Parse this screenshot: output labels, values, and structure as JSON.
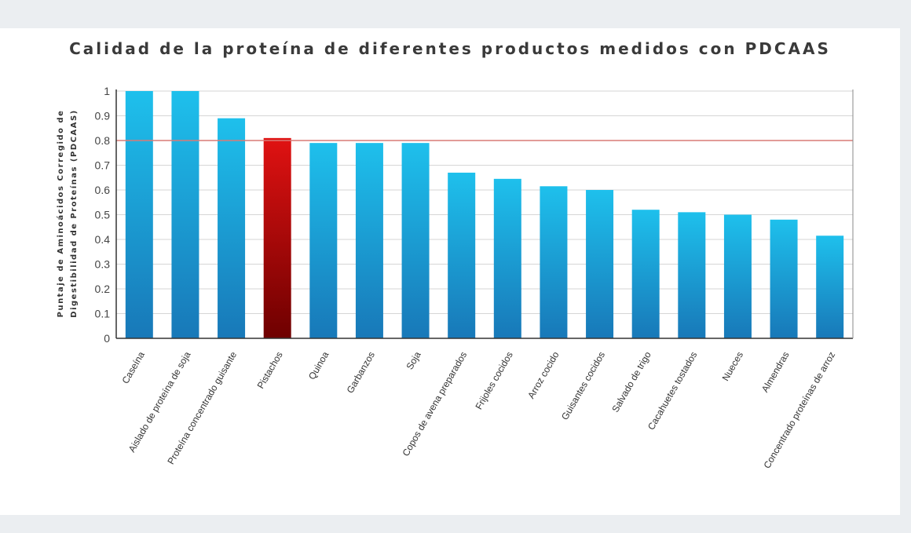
{
  "chart_data": {
    "type": "bar",
    "title": "Calidad de la proteína de diferentes productos medidos con PDCAAS",
    "ylabel_lines": [
      "Puntaje de Aminoácidos Corregido de",
      "Digestibilidad de Proteínas  (PDCAAS)"
    ],
    "xlabel": "",
    "ylim": [
      0,
      1
    ],
    "yticks": [
      "0",
      "0.1",
      "0.2",
      "0.3",
      "0.4",
      "0.5",
      "0.6",
      "0.7",
      "0.8",
      "0.9",
      "1"
    ],
    "grid": true,
    "reference_line": 0.8,
    "categories": [
      "Caseína",
      "Aislado de proteína de soja",
      "Proteína concentrado guisante",
      "Pistachos",
      "Quinoa",
      "Garbanzos",
      "Soja",
      "Copos de avena preparados",
      "Frijoles cocidos",
      "Arroz cocido",
      "Guisantes cocidos",
      "Salvado de trigo",
      "Cacahuetes tostados",
      "Nueces",
      "Almendras",
      "Concentrado proteínas de arroz"
    ],
    "values": [
      1.0,
      1.0,
      0.89,
      0.81,
      0.79,
      0.79,
      0.79,
      0.67,
      0.645,
      0.615,
      0.6,
      0.52,
      0.51,
      0.5,
      0.48,
      0.415
    ],
    "highlight": "Pistachos",
    "colors": {
      "bar_top": "#1ec0ec",
      "bar_bottom": "#1878b8",
      "highlight_top": "#e01212",
      "highlight_bottom": "#6e0000",
      "reference_line": "#d97a76",
      "grid": "#d6d6d6",
      "axis": "#333333"
    }
  }
}
